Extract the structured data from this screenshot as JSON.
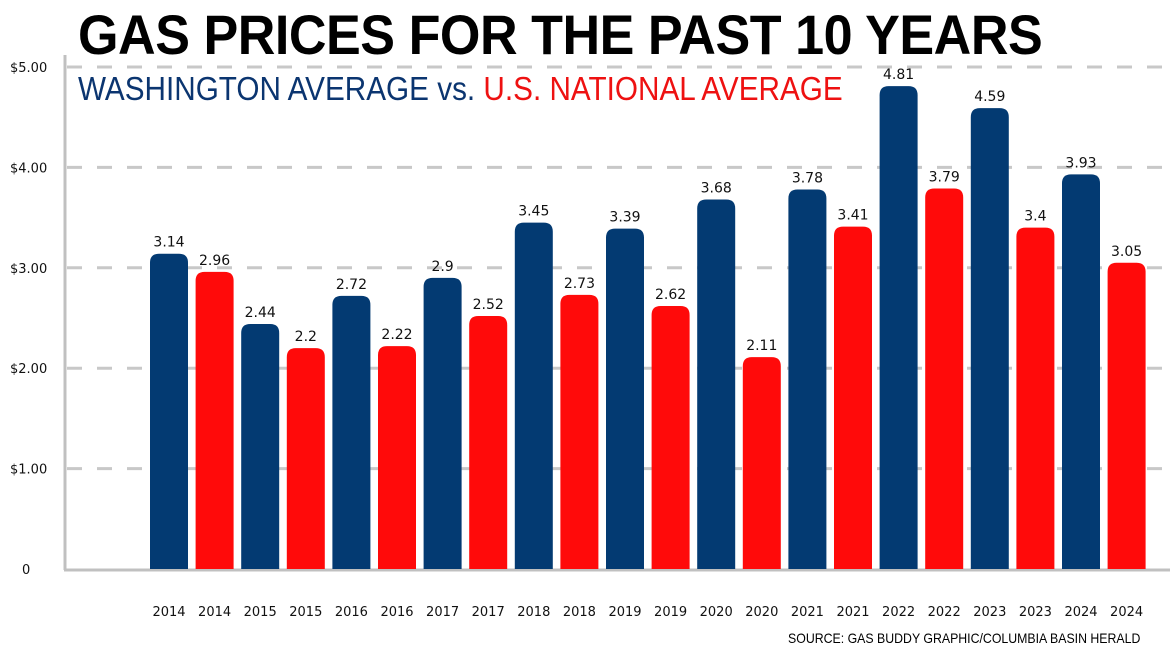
{
  "chart_data": {
    "type": "bar",
    "title": "GAS PRICES FOR THE PAST 10 YEARS",
    "subtitle": {
      "series_a": "WASHINGTON AVERAGE",
      "separator": "vs.",
      "series_b": "U.S. NATIONAL AVERAGE"
    },
    "source": "SOURCE: GAS BUDDY GRAPHIC/COLUMBIA BASIN HERALD",
    "xlabel": "",
    "ylabel": "",
    "ylim": [
      0,
      5
    ],
    "grid": true,
    "yticks": [
      {
        "value": 0,
        "label": "0"
      },
      {
        "value": 1,
        "label": "$1.00"
      },
      {
        "value": 2,
        "label": "$2.00"
      },
      {
        "value": 3,
        "label": "$3.00"
      },
      {
        "value": 4,
        "label": "$4.00"
      },
      {
        "value": 5,
        "label": "$5.00"
      }
    ],
    "categories": [
      "2014",
      "2015",
      "2016",
      "2017",
      "2018",
      "2019",
      "2020",
      "2021",
      "2022",
      "2023",
      "2024"
    ],
    "series": [
      {
        "name": "Washington Average",
        "color": "#033a72",
        "values": [
          3.14,
          2.44,
          2.72,
          2.9,
          3.45,
          3.39,
          3.68,
          3.78,
          4.81,
          4.59,
          3.93
        ],
        "labels": [
          "3.14",
          "2.44",
          "2.72",
          "2.9",
          "3.45",
          "3.39",
          "3.68",
          "3.78",
          "4.81",
          "4.59",
          "3.93"
        ]
      },
      {
        "name": "U.S. National Average",
        "color": "#ff0a0a",
        "values": [
          2.96,
          2.2,
          2.22,
          2.52,
          2.73,
          2.62,
          2.11,
          3.41,
          3.79,
          3.4,
          3.05
        ],
        "labels": [
          "2.96",
          "2.2",
          "2.22",
          "2.52",
          "2.73",
          "2.62",
          "2.11",
          "3.41",
          "3.79",
          "3.4",
          "3.05"
        ]
      }
    ]
  },
  "colors": {
    "washington": "#033a72",
    "national": "#ff0a0a",
    "grid": "#c8c8c8",
    "axis": "#c0c0c0"
  }
}
